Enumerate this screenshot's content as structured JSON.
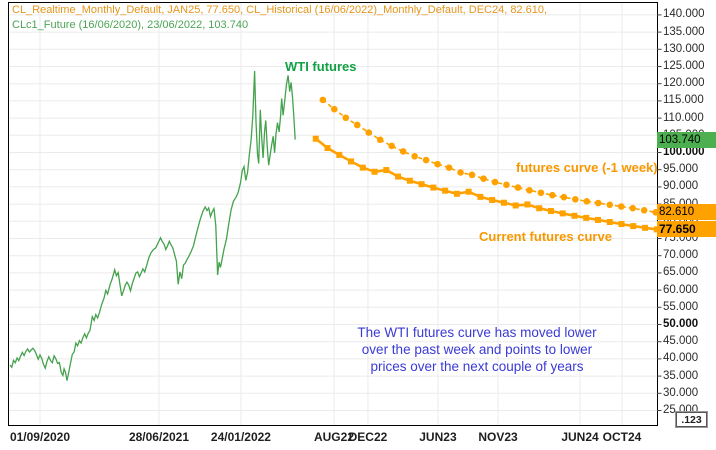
{
  "header": {
    "line1": "CL_Realtime_Monthly_Default, JAN25, 77.650, CL_Historical (16/06/2022)_Monthly_Default, DEC24, 82.610,",
    "line2": "CLc1_Future (16/06/2020), 23/06/2022, 103.740"
  },
  "annotations": {
    "wti_label": "WTI futures",
    "prev_curve_label": "futures curve (-1 week)",
    "current_curve_label": "Current futures curve",
    "note_lines": [
      "The WTI futures curve has moved lower",
      "over the past week and points to lower",
      "prices over the next couple of years"
    ]
  },
  "price_labels": {
    "spot": {
      "text": "103.740",
      "value": 103.74,
      "bg": "#4CAF50"
    },
    "prev": {
      "text": "82.610",
      "value": 82.61,
      "bg": "#FFA200"
    },
    "current": {
      "text": "77.650",
      "value": 77.65,
      "bg": "#FFA200"
    }
  },
  "axis_button": {
    "label": ".123"
  },
  "colors": {
    "history_line": "#45A24D",
    "futures_orange": "#FFA200",
    "grid": "#EBEBEB",
    "frame": "#000000",
    "axis_text": "#2B2B2B",
    "note_blue": "#3A3AD6"
  },
  "chart_data": {
    "type": "line",
    "title": "",
    "x_axis": {
      "unit": "months since Jun 2020",
      "ticks": [
        {
          "label": "01/09/2020",
          "m": 2.55
        },
        {
          "label": "28/06/2021",
          "m": 12.67
        },
        {
          "label": "24/01/2022",
          "m": 19.64
        },
        {
          "label": "AUG22",
          "m": 27.55
        },
        {
          "label": "DEC22",
          "m": 30.44
        },
        {
          "label": "JUN23",
          "m": 36.39
        },
        {
          "label": "NOV23",
          "m": 41.5
        },
        {
          "label": "JUN24",
          "m": 48.47
        },
        {
          "label": "OCT24",
          "m": 52.04
        }
      ]
    },
    "y_axis": {
      "min": 25,
      "max": 140,
      "step": 5,
      "decimals": 3,
      "bold_levels": [
        100,
        50
      ]
    },
    "series": [
      {
        "name": "CLc1_Future history",
        "style": "line",
        "color": "#45A24D",
        "points": [
          [
            0.0,
            38.2
          ],
          [
            0.15,
            37.6
          ],
          [
            0.3,
            39.6
          ],
          [
            0.45,
            38.9
          ],
          [
            0.6,
            40.3
          ],
          [
            0.75,
            39.5
          ],
          [
            0.9,
            40.8
          ],
          [
            1.05,
            41.9
          ],
          [
            1.2,
            41.0
          ],
          [
            1.35,
            42.2
          ],
          [
            1.5,
            42.9
          ],
          [
            1.65,
            42.0
          ],
          [
            1.8,
            42.6
          ],
          [
            1.95,
            43.1
          ],
          [
            2.1,
            42.4
          ],
          [
            2.25,
            41.2
          ],
          [
            2.4,
            39.9
          ],
          [
            2.55,
            41.2
          ],
          [
            2.7,
            40.1
          ],
          [
            2.85,
            38.4
          ],
          [
            3.0,
            37.3
          ],
          [
            3.15,
            39.3
          ],
          [
            3.3,
            40.6
          ],
          [
            3.45,
            39.5
          ],
          [
            3.6,
            38.9
          ],
          [
            3.75,
            40.9
          ],
          [
            3.9,
            40.0
          ],
          [
            4.05,
            38.7
          ],
          [
            4.2,
            38.9
          ],
          [
            4.35,
            36.1
          ],
          [
            4.5,
            35.2
          ],
          [
            4.6,
            37.1
          ],
          [
            4.72,
            36.1
          ],
          [
            4.85,
            33.7
          ],
          [
            5.0,
            36.2
          ],
          [
            5.15,
            38.9
          ],
          [
            5.3,
            41.3
          ],
          [
            5.45,
            42.0
          ],
          [
            5.6,
            44.6
          ],
          [
            5.75,
            43.8
          ],
          [
            5.9,
            45.3
          ],
          [
            6.05,
            44.6
          ],
          [
            6.2,
            46.2
          ],
          [
            6.35,
            47.3
          ],
          [
            6.5,
            46.1
          ],
          [
            6.65,
            47.4
          ],
          [
            6.8,
            48.3
          ],
          [
            7.0,
            52.3
          ],
          [
            7.15,
            51.2
          ],
          [
            7.3,
            52.9
          ],
          [
            7.45,
            51.9
          ],
          [
            7.6,
            53.4
          ],
          [
            7.8,
            55.8
          ],
          [
            8.0,
            57.7
          ],
          [
            8.15,
            59.9
          ],
          [
            8.3,
            58.9
          ],
          [
            8.5,
            61.5
          ],
          [
            8.7,
            63.4
          ],
          [
            8.9,
            65.9
          ],
          [
            9.05,
            64.2
          ],
          [
            9.2,
            65.1
          ],
          [
            9.35,
            61.5
          ],
          [
            9.5,
            58.3
          ],
          [
            9.65,
            59.8
          ],
          [
            9.8,
            61.4
          ],
          [
            9.95,
            62.3
          ],
          [
            10.1,
            61.4
          ],
          [
            10.25,
            59.8
          ],
          [
            10.4,
            61.9
          ],
          [
            10.55,
            63.4
          ],
          [
            10.7,
            64.9
          ],
          [
            10.85,
            65.3
          ],
          [
            11.0,
            63.9
          ],
          [
            11.15,
            64.9
          ],
          [
            11.3,
            66.2
          ],
          [
            11.45,
            65.3
          ],
          [
            11.6,
            66.9
          ],
          [
            11.8,
            69.4
          ],
          [
            12.0,
            70.9
          ],
          [
            12.2,
            71.8
          ],
          [
            12.4,
            72.3
          ],
          [
            12.6,
            73.8
          ],
          [
            12.8,
            75.2
          ],
          [
            12.95,
            74.1
          ],
          [
            13.1,
            73.3
          ],
          [
            13.25,
            71.8
          ],
          [
            13.4,
            72.9
          ],
          [
            13.55,
            74.2
          ],
          [
            13.7,
            73.1
          ],
          [
            13.85,
            72.2
          ],
          [
            14.0,
            70.3
          ],
          [
            14.15,
            68.4
          ],
          [
            14.3,
            61.7
          ],
          [
            14.45,
            65.3
          ],
          [
            14.6,
            63.3
          ],
          [
            14.75,
            67.3
          ],
          [
            14.9,
            67.8
          ],
          [
            15.05,
            68.9
          ],
          [
            15.2,
            69.8
          ],
          [
            15.4,
            71.2
          ],
          [
            15.6,
            72.9
          ],
          [
            15.8,
            75.7
          ],
          [
            16.0,
            78.4
          ],
          [
            16.2,
            80.8
          ],
          [
            16.4,
            82.9
          ],
          [
            16.6,
            84.2
          ],
          [
            16.75,
            83.1
          ],
          [
            16.9,
            83.9
          ],
          [
            17.05,
            81.4
          ],
          [
            17.2,
            82.8
          ],
          [
            17.35,
            83.7
          ],
          [
            17.5,
            78.7
          ],
          [
            17.65,
            64.4
          ],
          [
            17.78,
            68.1
          ],
          [
            17.9,
            66.6
          ],
          [
            18.05,
            69.3
          ],
          [
            18.2,
            71.9
          ],
          [
            18.4,
            74.7
          ],
          [
            18.6,
            79.2
          ],
          [
            18.8,
            83.3
          ],
          [
            19.0,
            85.8
          ],
          [
            19.2,
            86.9
          ],
          [
            19.4,
            88.3
          ],
          [
            19.6,
            91.2
          ],
          [
            19.75,
            94.8
          ],
          [
            19.9,
            95.9
          ],
          [
            20.05,
            91.9
          ],
          [
            20.2,
            94.3
          ],
          [
            20.35,
            99.3
          ],
          [
            20.5,
            103.6
          ],
          [
            20.65,
            110.6
          ],
          [
            20.8,
            123.7
          ],
          [
            20.92,
            109.0
          ],
          [
            21.05,
            99.5
          ],
          [
            21.15,
            96.8
          ],
          [
            21.28,
            112.4
          ],
          [
            21.4,
            104.3
          ],
          [
            21.52,
            98.4
          ],
          [
            21.65,
            106.3
          ],
          [
            21.75,
            109.3
          ],
          [
            21.88,
            101.4
          ],
          [
            22.0,
            96.3
          ],
          [
            22.12,
            99.2
          ],
          [
            22.25,
            102.3
          ],
          [
            22.38,
            104.7
          ],
          [
            22.5,
            99.9
          ],
          [
            22.62,
            105.4
          ],
          [
            22.75,
            108.7
          ],
          [
            22.88,
            106.0
          ],
          [
            23.0,
            110.3
          ],
          [
            23.1,
            115.7
          ],
          [
            23.22,
            110.8
          ],
          [
            23.35,
            114.7
          ],
          [
            23.5,
            119.7
          ],
          [
            23.65,
            122.4
          ],
          [
            23.78,
            117.7
          ],
          [
            23.9,
            120.4
          ],
          [
            24.02,
            116.2
          ],
          [
            24.12,
            111.0
          ],
          [
            24.25,
            103.74
          ]
        ]
      },
      {
        "name": "futures curve (-1 week)",
        "style": "dashed-circles",
        "color": "#FFA200",
        "m0": 26.6,
        "dm": 0.976,
        "values": [
          115.3,
          112.6,
          110.1,
          108.0,
          105.8,
          103.7,
          101.9,
          100.3,
          98.9,
          97.8,
          96.6,
          95.6,
          94.2,
          93.5,
          92.4,
          91.4,
          90.6,
          89.8,
          89.0,
          88.3,
          87.6,
          87.0,
          86.4,
          85.8,
          85.3,
          84.8,
          84.3,
          83.8,
          83.2,
          82.61
        ]
      },
      {
        "name": "Current futures curve",
        "style": "solid-squares",
        "color": "#FFA200",
        "m0": 26.0,
        "dm": 1.0,
        "values": [
          104.0,
          101.3,
          99.3,
          97.4,
          95.6,
          94.4,
          94.9,
          93.0,
          91.8,
          90.8,
          89.8,
          88.9,
          88.0,
          88.6,
          87.1,
          86.2,
          85.4,
          84.6,
          84.9,
          83.8,
          83.0,
          82.3,
          81.6,
          81.0,
          80.4,
          79.8,
          79.2,
          78.6,
          78.1,
          77.65
        ]
      }
    ]
  }
}
